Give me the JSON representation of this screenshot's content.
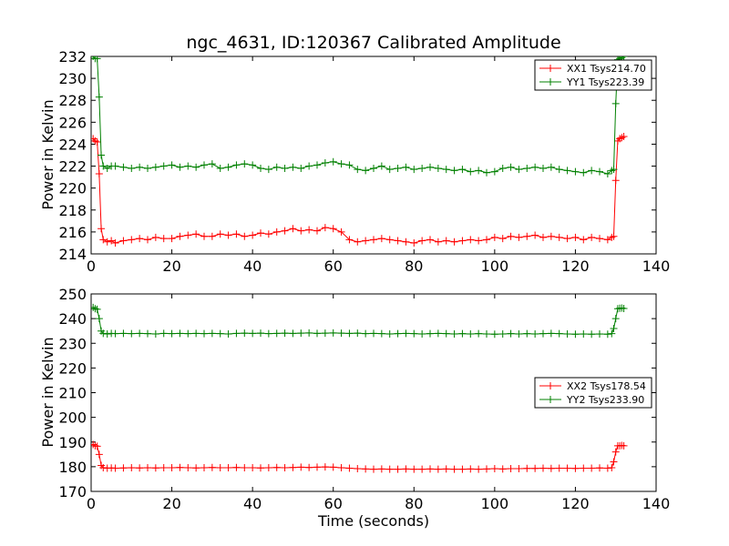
{
  "chart_data": [
    {
      "type": "line",
      "title": "ngc_4631, ID:120367 Calibrated Amplitude",
      "xlabel": "",
      "ylabel": "Power in Kelvin",
      "xlim": [
        0,
        140
      ],
      "ylim": [
        214,
        232
      ],
      "xticks": [
        "0",
        "20",
        "40",
        "60",
        "80",
        "100",
        "120",
        "140"
      ],
      "yticks": [
        "214",
        "216",
        "218",
        "220",
        "222",
        "224",
        "226",
        "228",
        "230",
        "232"
      ],
      "legend_position": "top-right",
      "grid": false,
      "series": [
        {
          "name": "XX1 Tsys214.70",
          "color": "#ff0000",
          "marker": "plus",
          "x": [
            0.5,
            1,
            1.5,
            2,
            2.5,
            3,
            4,
            5,
            6,
            8,
            10,
            12,
            14,
            16,
            18,
            20,
            22,
            24,
            26,
            28,
            30,
            32,
            34,
            36,
            38,
            40,
            42,
            44,
            46,
            48,
            50,
            52,
            54,
            56,
            58,
            60,
            62,
            64,
            66,
            68,
            70,
            72,
            74,
            76,
            78,
            80,
            82,
            84,
            86,
            88,
            90,
            92,
            94,
            96,
            98,
            100,
            102,
            104,
            106,
            108,
            110,
            112,
            114,
            116,
            118,
            120,
            122,
            124,
            126,
            128,
            129,
            129.5,
            130,
            130.5,
            131,
            131.5,
            132
          ],
          "y": [
            224.5,
            224.3,
            224.2,
            221.3,
            216.3,
            215.3,
            215.1,
            215.2,
            215.0,
            215.2,
            215.3,
            215.4,
            215.3,
            215.5,
            215.4,
            215.4,
            215.6,
            215.7,
            215.8,
            215.6,
            215.6,
            215.8,
            215.7,
            215.8,
            215.6,
            215.7,
            215.9,
            215.8,
            216.0,
            216.1,
            216.3,
            216.1,
            216.2,
            216.1,
            216.4,
            216.3,
            216.0,
            215.3,
            215.1,
            215.2,
            215.3,
            215.4,
            215.3,
            215.2,
            215.1,
            215.0,
            215.2,
            215.3,
            215.1,
            215.2,
            215.1,
            215.2,
            215.3,
            215.2,
            215.3,
            215.5,
            215.4,
            215.6,
            215.5,
            215.6,
            215.7,
            215.5,
            215.6,
            215.5,
            215.4,
            215.5,
            215.3,
            215.5,
            215.4,
            215.3,
            215.5,
            215.6,
            220.7,
            224.3,
            224.5,
            224.6,
            224.7
          ]
        },
        {
          "name": "YY1 Tsys223.39",
          "color": "#008000",
          "marker": "plus",
          "x": [
            0.5,
            1,
            1.5,
            2,
            2.5,
            3,
            4,
            5,
            6,
            8,
            10,
            12,
            14,
            16,
            18,
            20,
            22,
            24,
            26,
            28,
            30,
            32,
            34,
            36,
            38,
            40,
            42,
            44,
            46,
            48,
            50,
            52,
            54,
            56,
            58,
            60,
            62,
            64,
            66,
            68,
            70,
            72,
            74,
            76,
            78,
            80,
            82,
            84,
            86,
            88,
            90,
            92,
            94,
            96,
            98,
            100,
            102,
            104,
            106,
            108,
            110,
            112,
            114,
            116,
            118,
            120,
            122,
            124,
            126,
            128,
            129,
            129.5,
            130,
            130.5,
            131,
            131.5,
            132
          ],
          "y": [
            232.0,
            231.8,
            231.8,
            228.3,
            223.0,
            222.0,
            221.8,
            222.0,
            222.0,
            221.9,
            221.8,
            221.9,
            221.8,
            221.9,
            222.0,
            222.1,
            221.9,
            222.0,
            221.9,
            222.1,
            222.2,
            221.8,
            221.9,
            222.1,
            222.2,
            222.1,
            221.8,
            221.7,
            221.9,
            221.8,
            221.9,
            221.8,
            222.0,
            222.1,
            222.3,
            222.4,
            222.2,
            222.1,
            221.7,
            221.6,
            221.8,
            222.0,
            221.7,
            221.8,
            221.9,
            221.7,
            221.8,
            221.9,
            221.8,
            221.7,
            221.6,
            221.7,
            221.5,
            221.6,
            221.4,
            221.5,
            221.8,
            221.9,
            221.7,
            221.8,
            221.9,
            221.8,
            221.9,
            221.7,
            221.6,
            221.5,
            221.4,
            221.6,
            221.5,
            221.3,
            221.6,
            221.7,
            227.7,
            231.7,
            231.8,
            231.9,
            232.0
          ]
        }
      ]
    },
    {
      "type": "line",
      "title": "",
      "xlabel": "Time (seconds)",
      "ylabel": "Power in Kelvin",
      "xlim": [
        0,
        140
      ],
      "ylim": [
        170,
        250
      ],
      "xticks": [
        "0",
        "20",
        "40",
        "60",
        "80",
        "100",
        "120",
        "140"
      ],
      "yticks": [
        "170",
        "180",
        "190",
        "200",
        "210",
        "220",
        "230",
        "240",
        "250"
      ],
      "legend_position": "center-right",
      "grid": false,
      "series": [
        {
          "name": "XX2 Tsys178.54",
          "color": "#ff0000",
          "marker": "plus",
          "x": [
            0.5,
            1,
            1.5,
            2,
            2.5,
            3,
            4,
            5,
            6,
            8,
            10,
            12,
            14,
            16,
            18,
            20,
            22,
            24,
            26,
            28,
            30,
            32,
            34,
            36,
            38,
            40,
            42,
            44,
            46,
            48,
            50,
            52,
            54,
            56,
            58,
            60,
            62,
            64,
            66,
            68,
            70,
            72,
            74,
            76,
            78,
            80,
            82,
            84,
            86,
            88,
            90,
            92,
            94,
            96,
            98,
            100,
            102,
            104,
            106,
            108,
            110,
            112,
            114,
            116,
            118,
            120,
            122,
            124,
            126,
            128,
            129,
            129.5,
            130,
            130.5,
            131,
            131.5,
            132
          ],
          "y": [
            189.0,
            188.5,
            188.3,
            185.0,
            180.5,
            179.6,
            179.4,
            179.5,
            179.4,
            179.5,
            179.6,
            179.5,
            179.6,
            179.5,
            179.6,
            179.6,
            179.7,
            179.6,
            179.5,
            179.6,
            179.7,
            179.6,
            179.6,
            179.7,
            179.6,
            179.6,
            179.5,
            179.6,
            179.7,
            179.6,
            179.7,
            179.8,
            179.7,
            179.8,
            179.9,
            179.8,
            179.6,
            179.4,
            179.2,
            179.1,
            179.0,
            179.1,
            179.0,
            179.0,
            179.1,
            179.0,
            179.0,
            179.1,
            179.0,
            179.1,
            179.0,
            179.0,
            179.1,
            179.0,
            179.1,
            179.2,
            179.1,
            179.2,
            179.2,
            179.3,
            179.3,
            179.4,
            179.3,
            179.4,
            179.4,
            179.3,
            179.4,
            179.4,
            179.5,
            179.4,
            179.6,
            182.0,
            186.0,
            188.5,
            188.5,
            188.6,
            188.5
          ]
        },
        {
          "name": "YY2 Tsys233.90",
          "color": "#008000",
          "marker": "plus",
          "x": [
            0.5,
            1,
            1.5,
            2,
            2.5,
            3,
            4,
            5,
            6,
            8,
            10,
            12,
            14,
            16,
            18,
            20,
            22,
            24,
            26,
            28,
            30,
            32,
            34,
            36,
            38,
            40,
            42,
            44,
            46,
            48,
            50,
            52,
            54,
            56,
            58,
            60,
            62,
            64,
            66,
            68,
            70,
            72,
            74,
            76,
            78,
            80,
            82,
            84,
            86,
            88,
            90,
            92,
            94,
            96,
            98,
            100,
            102,
            104,
            106,
            108,
            110,
            112,
            114,
            116,
            118,
            120,
            122,
            124,
            126,
            128,
            129,
            129.5,
            130,
            130.5,
            131,
            131.5,
            132
          ],
          "y": [
            244.5,
            244.0,
            243.8,
            240.0,
            235.0,
            234.0,
            233.8,
            234.0,
            233.9,
            234.0,
            233.9,
            234.0,
            233.9,
            233.8,
            234.0,
            233.9,
            234.0,
            233.9,
            234.0,
            233.9,
            234.0,
            233.9,
            233.8,
            234.0,
            234.1,
            234.0,
            234.1,
            233.9,
            234.0,
            234.1,
            234.0,
            234.1,
            234.2,
            234.0,
            234.1,
            234.2,
            234.1,
            234.0,
            234.1,
            233.9,
            234.0,
            233.9,
            233.8,
            233.9,
            234.0,
            233.9,
            233.8,
            233.9,
            234.0,
            233.9,
            233.8,
            233.9,
            233.8,
            233.9,
            233.8,
            233.7,
            233.8,
            233.9,
            233.8,
            233.9,
            233.8,
            233.9,
            234.0,
            233.9,
            233.8,
            233.7,
            233.8,
            233.7,
            233.8,
            233.7,
            233.9,
            236.0,
            240.0,
            244.0,
            244.2,
            244.3,
            244.1
          ]
        }
      ]
    }
  ]
}
